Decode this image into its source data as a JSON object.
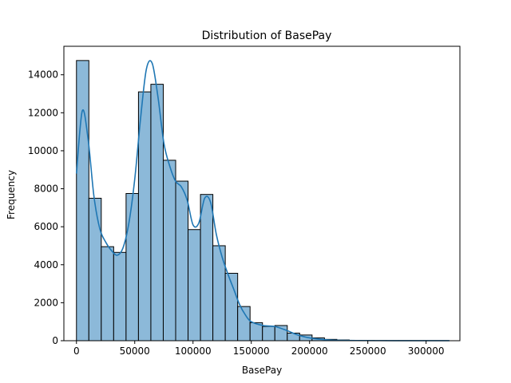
{
  "chart_data": {
    "type": "bar",
    "title": "Distribution of BasePay",
    "xlabel": "BasePay",
    "ylabel": "Frequency",
    "xlim": [
      -10800,
      329000
    ],
    "ylim": [
      0,
      15500
    ],
    "bin_width": 10640,
    "bin_start": 0,
    "values": [
      14750,
      7500,
      4950,
      4650,
      7750,
      13100,
      13500,
      9500,
      8400,
      5850,
      7700,
      5000,
      3550,
      1800,
      950,
      750,
      800,
      400,
      300,
      150,
      70,
      40,
      20,
      12,
      8,
      5,
      4,
      3,
      2,
      1
    ],
    "kde": {
      "x": [
        0,
        5000,
        10000,
        15000,
        20000,
        25000,
        30000,
        35000,
        40000,
        45000,
        50000,
        55000,
        60000,
        65000,
        70000,
        75000,
        80000,
        85000,
        90000,
        95000,
        100000,
        105000,
        110000,
        115000,
        120000,
        125000,
        130000,
        135000,
        140000,
        145000,
        150000,
        160000,
        170000,
        180000,
        190000,
        200000,
        210000,
        220000,
        240000,
        260000,
        280000,
        300000,
        320000
      ],
      "y": [
        8800,
        12100,
        10600,
        7600,
        5900,
        5200,
        4750,
        4500,
        4900,
        6200,
        8500,
        11700,
        14300,
        14600,
        12800,
        10400,
        9200,
        8400,
        8100,
        7400,
        6100,
        6200,
        7500,
        7300,
        5600,
        4400,
        3500,
        2700,
        1900,
        1350,
        1000,
        800,
        750,
        550,
        300,
        150,
        70,
        30,
        10,
        5,
        3,
        2,
        1
      ]
    },
    "xticks": [
      0,
      50000,
      100000,
      150000,
      200000,
      250000,
      300000
    ],
    "xtick_labels": [
      "0",
      "50000",
      "100000",
      "150000",
      "200000",
      "250000",
      "300000"
    ],
    "yticks": [
      0,
      2000,
      4000,
      6000,
      8000,
      10000,
      12000,
      14000
    ],
    "ytick_labels": [
      "0",
      "2000",
      "4000",
      "6000",
      "8000",
      "10000",
      "12000",
      "14000"
    ],
    "bar_color": "#8cb9d9",
    "bar_edge_color": "#000000",
    "line_color": "#1f77b4",
    "grid": false
  }
}
